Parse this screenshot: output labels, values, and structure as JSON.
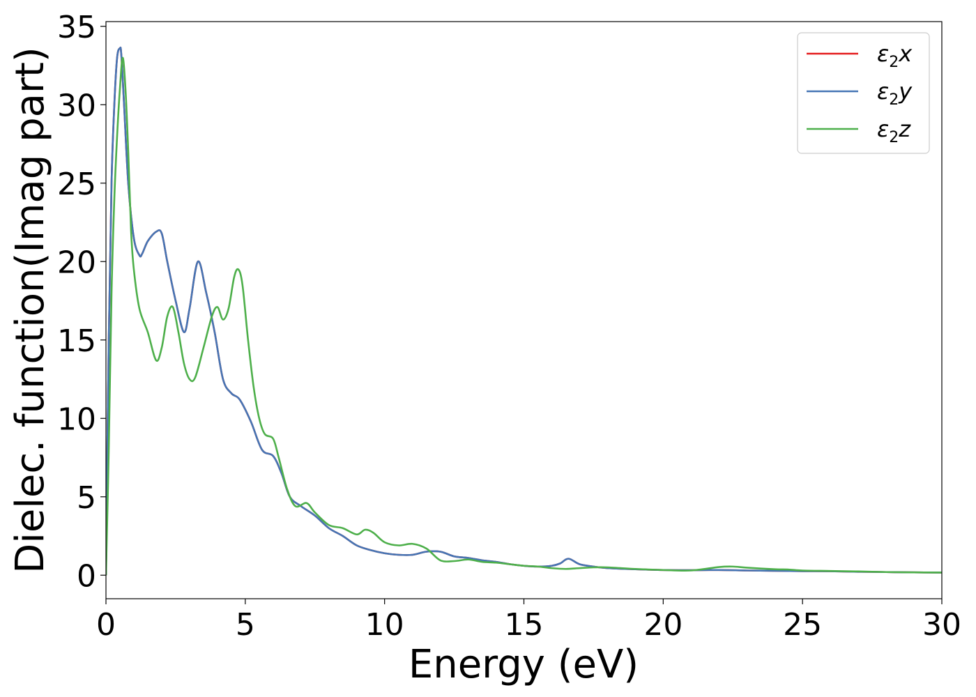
{
  "chart_data": {
    "type": "line",
    "title": "",
    "xlabel": "Energy (eV)",
    "ylabel": "Dielec. function(Imag part)",
    "xlim": [
      0,
      30
    ],
    "ylim": [
      -1.5,
      35.3
    ],
    "xticks": [
      0,
      5,
      10,
      15,
      20,
      25,
      30
    ],
    "yticks": [
      0,
      5,
      10,
      15,
      20,
      25,
      30,
      35
    ],
    "grid": false,
    "legend_position": "top-right",
    "series": [
      {
        "name": "ε₂x",
        "sym": "ε",
        "sub": "2",
        "axis": "x",
        "color": "#e41a1c",
        "x": [
          0,
          0.1,
          0.2,
          0.3,
          0.4,
          0.5,
          0.55,
          0.65,
          0.8,
          1.0,
          1.2,
          1.3,
          1.5,
          1.8,
          2.0,
          2.2,
          2.5,
          2.8,
          3.0,
          3.3,
          3.6,
          3.9,
          4.2,
          4.5,
          4.8,
          5.2,
          5.6,
          6.0,
          6.3,
          6.6,
          7.0,
          7.5,
          8.0,
          8.5,
          9.0,
          9.5,
          10.0,
          10.5,
          11.0,
          11.5,
          12.0,
          12.5,
          13.0,
          13.5,
          14.0,
          14.5,
          15.0,
          15.5,
          16.0,
          16.3,
          16.6,
          17.0,
          17.5,
          18.0,
          19.0,
          20.0,
          21.0,
          22.0,
          23.0,
          24.0,
          25.0,
          26.0,
          27.0,
          28.0,
          29.0,
          30.0
        ],
        "values": [
          0,
          15,
          25,
          30,
          33,
          33.6,
          33.2,
          30,
          25,
          21.5,
          20.4,
          20.5,
          21.3,
          21.9,
          21.8,
          20.0,
          17.5,
          15.5,
          17.0,
          20.0,
          18.0,
          15.5,
          12.5,
          11.6,
          11.2,
          9.8,
          8.0,
          7.6,
          6.5,
          5.0,
          4.4,
          3.8,
          3.0,
          2.5,
          1.9,
          1.6,
          1.4,
          1.3,
          1.3,
          1.5,
          1.5,
          1.2,
          1.1,
          0.95,
          0.85,
          0.7,
          0.6,
          0.55,
          0.6,
          0.75,
          1.05,
          0.7,
          0.55,
          0.45,
          0.38,
          0.33,
          0.32,
          0.33,
          0.3,
          0.28,
          0.26,
          0.25,
          0.22,
          0.2,
          0.18,
          0.17
        ]
      },
      {
        "name": "ε₂y",
        "sym": "ε",
        "sub": "2",
        "axis": "y",
        "color": "#4575b4",
        "x": [
          0,
          0.1,
          0.2,
          0.3,
          0.4,
          0.5,
          0.55,
          0.65,
          0.8,
          1.0,
          1.2,
          1.3,
          1.5,
          1.8,
          2.0,
          2.2,
          2.5,
          2.8,
          3.0,
          3.3,
          3.6,
          3.9,
          4.2,
          4.5,
          4.8,
          5.2,
          5.6,
          6.0,
          6.3,
          6.6,
          7.0,
          7.5,
          8.0,
          8.5,
          9.0,
          9.5,
          10.0,
          10.5,
          11.0,
          11.5,
          12.0,
          12.5,
          13.0,
          13.5,
          14.0,
          14.5,
          15.0,
          15.5,
          16.0,
          16.3,
          16.6,
          17.0,
          17.5,
          18.0,
          19.0,
          20.0,
          21.0,
          22.0,
          23.0,
          24.0,
          25.0,
          26.0,
          27.0,
          28.0,
          29.0,
          30.0
        ],
        "values": [
          0,
          15,
          25,
          30,
          33,
          33.6,
          33.2,
          30,
          25,
          21.5,
          20.4,
          20.5,
          21.3,
          21.9,
          21.8,
          20.0,
          17.5,
          15.5,
          17.0,
          20.0,
          18.0,
          15.5,
          12.5,
          11.6,
          11.2,
          9.8,
          8.0,
          7.6,
          6.5,
          5.0,
          4.4,
          3.8,
          3.0,
          2.5,
          1.9,
          1.6,
          1.4,
          1.3,
          1.3,
          1.5,
          1.5,
          1.2,
          1.1,
          0.95,
          0.85,
          0.7,
          0.6,
          0.55,
          0.6,
          0.75,
          1.05,
          0.7,
          0.55,
          0.45,
          0.38,
          0.33,
          0.32,
          0.33,
          0.3,
          0.28,
          0.26,
          0.25,
          0.22,
          0.2,
          0.18,
          0.17
        ]
      },
      {
        "name": "ε₂z",
        "sym": "ε",
        "sub": "2",
        "axis": "z",
        "color": "#4daf4a",
        "x": [
          0,
          0.1,
          0.2,
          0.3,
          0.4,
          0.5,
          0.6,
          0.7,
          0.8,
          0.9,
          1.0,
          1.2,
          1.5,
          1.8,
          2.0,
          2.2,
          2.4,
          2.6,
          2.8,
          3.0,
          3.2,
          3.5,
          3.8,
          4.0,
          4.2,
          4.4,
          4.6,
          4.75,
          4.9,
          5.1,
          5.3,
          5.5,
          5.7,
          6.0,
          6.2,
          6.5,
          6.8,
          7.2,
          7.5,
          8.0,
          8.5,
          9.0,
          9.3,
          9.6,
          10.0,
          10.5,
          11.0,
          11.5,
          12.0,
          12.5,
          13.0,
          13.5,
          14.0,
          14.5,
          15.0,
          15.5,
          16.0,
          16.5,
          17.0,
          17.5,
          18.0,
          19.0,
          20.0,
          21.0,
          22.0,
          22.5,
          23.0,
          24.0,
          24.5,
          25.0,
          26.0,
          27.0,
          28.0,
          29.0,
          30.0
        ],
        "values": [
          0,
          8,
          18,
          24,
          28,
          31,
          33,
          31,
          27,
          22,
          19.5,
          17,
          15.5,
          13.7,
          14.5,
          16.5,
          17.1,
          15.5,
          13.5,
          12.5,
          12.6,
          14.5,
          16.5,
          17.1,
          16.3,
          17.0,
          19.0,
          19.5,
          18.5,
          15.0,
          12.0,
          10.0,
          9.0,
          8.7,
          7.5,
          5.5,
          4.4,
          4.6,
          4.0,
          3.2,
          3.0,
          2.6,
          2.9,
          2.7,
          2.1,
          1.9,
          2.0,
          1.7,
          0.95,
          0.9,
          1.0,
          0.85,
          0.8,
          0.7,
          0.6,
          0.55,
          0.45,
          0.4,
          0.45,
          0.5,
          0.5,
          0.4,
          0.33,
          0.3,
          0.52,
          0.55,
          0.48,
          0.38,
          0.36,
          0.3,
          0.27,
          0.24,
          0.2,
          0.18,
          0.17
        ]
      }
    ]
  }
}
